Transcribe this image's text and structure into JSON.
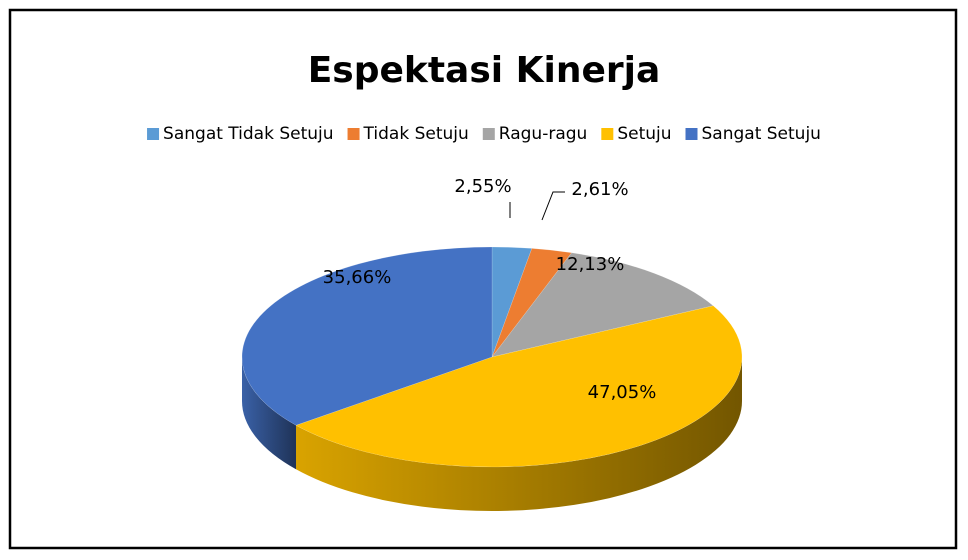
{
  "chart_data": {
    "type": "pie3d",
    "title": "Espektasi Kinerja",
    "categories": [
      "Sangat Tidak Setuju",
      "Tidak Setuju",
      "Ragu-ragu",
      "Setuju",
      "Sangat Setuju"
    ],
    "values": [
      2.55,
      2.61,
      12.13,
      47.05,
      35.66
    ],
    "value_labels": [
      "2,55%",
      "2,61%",
      "12,13%",
      "47,05%",
      "35,66%"
    ],
    "colors": [
      "#5b9bd5",
      "#ed7d31",
      "#a5a5a5",
      "#ffc000",
      "#4472c4"
    ],
    "legend": "top"
  }
}
